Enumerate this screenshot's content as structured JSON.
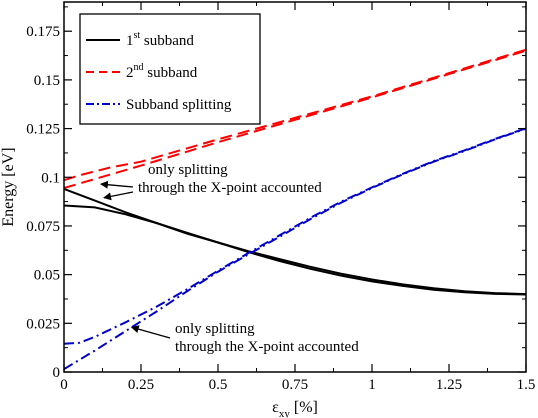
{
  "chart_data": {
    "type": "line",
    "xlabel": "ε",
    "xlabel_sub": "xy",
    "xlabel_unit": " [%]",
    "ylabel": "Energy [eV]",
    "xlim": [
      0,
      1.5
    ],
    "ylim": [
      0,
      0.19
    ],
    "xticks": [
      0,
      0.25,
      0.5,
      0.75,
      1,
      1.25,
      1.5
    ],
    "xtick_labels": [
      "0",
      "0.25",
      "0.5",
      "0.75",
      "1",
      "1.25",
      "1.5"
    ],
    "yticks": [
      0,
      0.025,
      0.05,
      0.075,
      0.1,
      0.125,
      0.15,
      0.175
    ],
    "ytick_labels": [
      "0",
      "0.025",
      "0.05",
      "0.075",
      "0.1",
      "0.125",
      "0.15",
      "0.175"
    ],
    "grid": false,
    "legend_position": "top-left",
    "legend": [
      {
        "base": "1",
        "sup": "st",
        "rest": " subband",
        "color": "#000000",
        "dash": "solid"
      },
      {
        "base": "2",
        "sup": "nd",
        "rest": " subband",
        "color": "#ff0000",
        "dash": "dash"
      },
      {
        "base": "Subband splitting",
        "sup": "",
        "rest": "",
        "color": "#0000cc",
        "dash": "dashdot"
      }
    ],
    "series": [
      {
        "name": "1st subband",
        "color": "#000000",
        "dash": "solid",
        "x": [
          0,
          0.1,
          0.2,
          0.3,
          0.4,
          0.5,
          0.6,
          0.7,
          0.8,
          0.9,
          1.0,
          1.1,
          1.2,
          1.3,
          1.4,
          1.5
        ],
        "y": [
          0.094,
          0.088,
          0.082,
          0.0765,
          0.071,
          0.0665,
          0.062,
          0.058,
          0.054,
          0.0505,
          0.0475,
          0.045,
          0.043,
          0.0415,
          0.0405,
          0.04
        ]
      },
      {
        "name": "1st subband",
        "color": "#000000",
        "dash": "solid",
        "x": [
          0,
          0.1,
          0.2,
          0.3,
          0.4,
          0.5,
          0.6,
          0.7,
          0.8,
          0.9,
          1.0,
          1.1,
          1.2,
          1.3,
          1.4,
          1.5
        ],
        "y": [
          0.0855,
          0.0845,
          0.081,
          0.0765,
          0.0715,
          0.0665,
          0.0615,
          0.057,
          0.053,
          0.0495,
          0.0465,
          0.0442,
          0.0422,
          0.041,
          0.0401,
          0.0398
        ]
      },
      {
        "name": "2nd subband",
        "color": "#ff0000",
        "dash": "dash",
        "x": [
          0,
          0.25,
          0.5,
          0.75,
          1.0,
          1.25,
          1.5
        ],
        "y": [
          0.0945,
          0.106,
          0.118,
          0.1295,
          0.141,
          0.153,
          0.165
        ]
      },
      {
        "name": "2nd subband",
        "color": "#ff0000",
        "dash": "dash",
        "x": [
          0,
          0.05,
          0.15,
          0.25,
          0.5,
          0.75,
          1.0,
          1.25,
          1.5
        ],
        "y": [
          0.0985,
          0.101,
          0.105,
          0.108,
          0.1195,
          0.1305,
          0.1415,
          0.1535,
          0.1655
        ]
      },
      {
        "name": "Subband splitting",
        "color": "#0000cc",
        "dash": "dashdot",
        "x": [
          0,
          0.1,
          0.2,
          0.3,
          0.4,
          0.5,
          0.6,
          0.7,
          0.8,
          0.9,
          1.0,
          1.1,
          1.2,
          1.3,
          1.4,
          1.5
        ],
        "y": [
          0.0015,
          0.011,
          0.021,
          0.031,
          0.0415,
          0.0515,
          0.0605,
          0.0695,
          0.0785,
          0.087,
          0.0945,
          0.1015,
          0.108,
          0.1135,
          0.1195,
          0.125
        ]
      },
      {
        "name": "Subband splitting",
        "color": "#0000cc",
        "dash": "dashdot",
        "x": [
          0,
          0.05,
          0.1,
          0.2,
          0.3,
          0.4,
          0.5,
          0.6,
          0.7,
          0.8,
          0.9,
          1.0,
          1.1,
          1.2,
          1.3,
          1.4,
          1.5
        ],
        "y": [
          0.0145,
          0.015,
          0.018,
          0.0255,
          0.0335,
          0.0425,
          0.052,
          0.0612,
          0.0702,
          0.0792,
          0.0875,
          0.0948,
          0.1018,
          0.1083,
          0.1138,
          0.1197,
          0.1252
        ]
      }
    ],
    "annotations": [
      {
        "lines": [
          "only splitting",
          "through the X-point accounted"
        ],
        "arrow_targets": [
          [
            0.12,
            0.0965
          ],
          [
            0.13,
            0.0895
          ]
        ]
      },
      {
        "lines": [
          "only splitting",
          "through the X-point accounted"
        ],
        "arrow_targets": [
          [
            0.22,
            0.023
          ]
        ]
      }
    ]
  }
}
